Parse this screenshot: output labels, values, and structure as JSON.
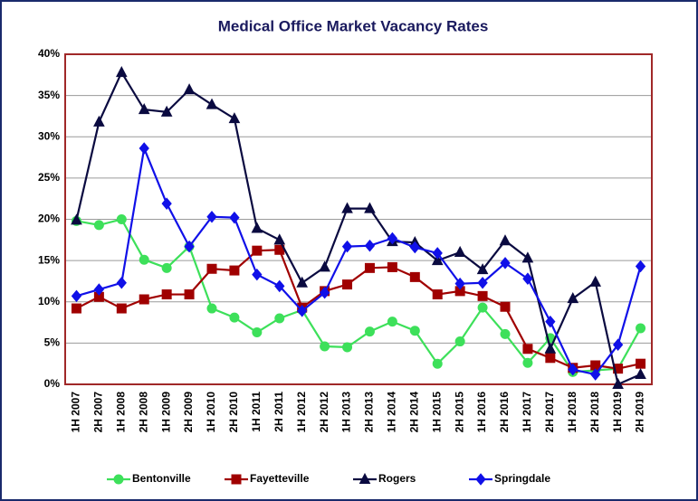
{
  "chart_data": {
    "type": "line",
    "title": "Medical Office Market Vacancy Rates",
    "categories": [
      "1H 2007",
      "2H 2007",
      "1H 2008",
      "2H 2008",
      "1H 2009",
      "2H 2009",
      "1H 2010",
      "2H 2010",
      "1H 2011",
      "2H 2011",
      "1H 2012",
      "2H 2012",
      "1H 2013",
      "2H 2013",
      "1H 2014",
      "2H 2014",
      "1H 2015",
      "2H 2015",
      "1H 2016",
      "2H 2016",
      "1H 2017",
      "2H 2017",
      "1H 2018",
      "2H 2018",
      "1H 2019",
      "2H 2019"
    ],
    "series": [
      {
        "name": "Bentonville",
        "color": "#3de05a",
        "marker": "circle",
        "values": [
          19.8,
          19.3,
          20.0,
          15.1,
          14.1,
          16.7,
          9.2,
          8.1,
          6.3,
          8.0,
          9.0,
          4.6,
          4.5,
          6.4,
          7.6,
          6.5,
          2.5,
          5.2,
          9.3,
          6.1,
          2.6,
          5.6,
          1.5,
          1.7,
          1.9,
          6.8
        ]
      },
      {
        "name": "Fayetteville",
        "color": "#a00000",
        "marker": "square",
        "values": [
          9.2,
          10.6,
          9.2,
          10.3,
          10.9,
          10.9,
          14.0,
          13.8,
          16.2,
          16.3,
          9.3,
          11.3,
          12.1,
          14.1,
          14.2,
          13.0,
          10.9,
          11.3,
          10.7,
          9.4,
          4.3,
          3.2,
          2.0,
          2.3,
          1.9,
          2.5
        ]
      },
      {
        "name": "Rogers",
        "color": "#0a0a40",
        "marker": "triangle",
        "values": [
          19.9,
          31.8,
          37.8,
          33.3,
          33.0,
          35.7,
          33.9,
          32.2,
          18.9,
          17.5,
          12.3,
          14.2,
          21.3,
          21.3,
          17.3,
          17.2,
          15.0,
          16.0,
          13.9,
          17.4,
          15.3,
          4.3,
          10.4,
          12.4,
          0,
          1.2
        ]
      },
      {
        "name": "Springdale",
        "color": "#1010e8",
        "marker": "diamond",
        "values": [
          10.7,
          11.5,
          12.3,
          28.6,
          21.9,
          16.7,
          20.3,
          20.2,
          13.3,
          11.9,
          8.9,
          11.1,
          16.7,
          16.8,
          17.7,
          16.6,
          15.9,
          12.2,
          12.3,
          14.7,
          12.8,
          7.6,
          1.8,
          1.2,
          4.8,
          14.3
        ]
      }
    ],
    "ylim": [
      0,
      40
    ],
    "yticks": [
      {
        "value": 0,
        "label": "0%"
      },
      {
        "value": 5,
        "label": "5%"
      },
      {
        "value": 10,
        "label": "10%"
      },
      {
        "value": 15,
        "label": "15%"
      },
      {
        "value": 20,
        "label": "20%"
      },
      {
        "value": 25,
        "label": "25%"
      },
      {
        "value": 30,
        "label": "30%"
      },
      {
        "value": 35,
        "label": "35%"
      },
      {
        "value": 40,
        "label": "40%"
      }
    ],
    "grid": true,
    "legend": "bottom"
  }
}
